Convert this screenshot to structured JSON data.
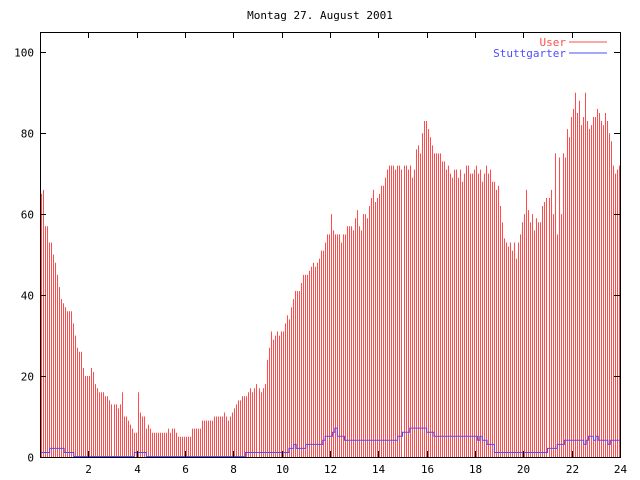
{
  "chart_data": {
    "type": "bar",
    "title": "Montag 27. August 2001",
    "xlabel": "",
    "ylabel": "",
    "xlim": [
      0,
      24
    ],
    "ylim": [
      0,
      105
    ],
    "x_ticks": [
      2,
      4,
      6,
      8,
      10,
      12,
      14,
      16,
      18,
      20,
      22,
      24
    ],
    "y_ticks": [
      0,
      20,
      40,
      60,
      80,
      100
    ],
    "legend_position": "top-right",
    "interval_minutes": 5,
    "series": [
      {
        "name": "User",
        "style": "impulses",
        "color": "#ff4d4d",
        "values": [
          65,
          66,
          57,
          57,
          53,
          53,
          50,
          48,
          45,
          42,
          39,
          38,
          37,
          36,
          36,
          36,
          33,
          30,
          27,
          26,
          26,
          22,
          20,
          20,
          20,
          22,
          21,
          18,
          17,
          16,
          16,
          16,
          15,
          15,
          14,
          13,
          13,
          13,
          12,
          13,
          16,
          10,
          10,
          9,
          8,
          7,
          6,
          6,
          16,
          11,
          10,
          10,
          7,
          8,
          7,
          6,
          6,
          6,
          6,
          6,
          6,
          6,
          6,
          7,
          6,
          7,
          7,
          6,
          5,
          5,
          5,
          5,
          5,
          5,
          5,
          7,
          7,
          7,
          7,
          7,
          9,
          9,
          9,
          9,
          9,
          9,
          10,
          10,
          10,
          10,
          10,
          11,
          10,
          9,
          10,
          11,
          12,
          13,
          14,
          14,
          15,
          15,
          15,
          16,
          17,
          16,
          17,
          18,
          17,
          16,
          17,
          18,
          24,
          27,
          31,
          29,
          30,
          31,
          30,
          31,
          31,
          33,
          35,
          34,
          37,
          39,
          41,
          41,
          41,
          43,
          45,
          45,
          45,
          46,
          47,
          48,
          47,
          48,
          49,
          51,
          51,
          53,
          55,
          55,
          60,
          56,
          55,
          55,
          55,
          53,
          55,
          55,
          57,
          57,
          57,
          56,
          59,
          61,
          57,
          56,
          60,
          60,
          59,
          62,
          64,
          66,
          63,
          64,
          65,
          67,
          67,
          69,
          71,
          72,
          72,
          72,
          71,
          72,
          72,
          71,
          72,
          72,
          71,
          72,
          69,
          71,
          76,
          77,
          75,
          80,
          83,
          83,
          81,
          79,
          77,
          75,
          75,
          75,
          75,
          73,
          73,
          71,
          72,
          70,
          69,
          71,
          71,
          69,
          71,
          68,
          70,
          72,
          72,
          70,
          70,
          71,
          72,
          70,
          71,
          68,
          70,
          72,
          70,
          71,
          68,
          68,
          66,
          67,
          62,
          58,
          54,
          53,
          52,
          53,
          51,
          53,
          49,
          53,
          55,
          58,
          60,
          66,
          61,
          58,
          60,
          56,
          59,
          58,
          58,
          62,
          63,
          64,
          64,
          66,
          60,
          75,
          55,
          74,
          60,
          75,
          74,
          81,
          79,
          84,
          86,
          90,
          85,
          88,
          82,
          84,
          90,
          83,
          81,
          82,
          84,
          84,
          86,
          85,
          83,
          82,
          85,
          83,
          80,
          78,
          72,
          70,
          71,
          72
        ]
      },
      {
        "name": "Stuttgarter",
        "style": "steps",
        "color": "#4d4dff",
        "points": [
          [
            0,
            1
          ],
          [
            0.4,
            2
          ],
          [
            1.0,
            1
          ],
          [
            1.4,
            0
          ],
          [
            3.9,
            1
          ],
          [
            4.4,
            0
          ],
          [
            8.5,
            1
          ],
          [
            10.3,
            2
          ],
          [
            10.5,
            3
          ],
          [
            10.6,
            2
          ],
          [
            11.0,
            3
          ],
          [
            11.7,
            4
          ],
          [
            11.8,
            5
          ],
          [
            12.1,
            6
          ],
          [
            12.2,
            7
          ],
          [
            12.3,
            5
          ],
          [
            12.6,
            4
          ],
          [
            14.8,
            5
          ],
          [
            15.0,
            6
          ],
          [
            15.3,
            7
          ],
          [
            16.0,
            6
          ],
          [
            16.3,
            5
          ],
          [
            18.1,
            4
          ],
          [
            18.2,
            5
          ],
          [
            18.3,
            4
          ],
          [
            18.5,
            3
          ],
          [
            18.8,
            1
          ],
          [
            21.0,
            2
          ],
          [
            21.4,
            3
          ],
          [
            21.7,
            4
          ],
          [
            22.5,
            3
          ],
          [
            22.6,
            4
          ],
          [
            22.7,
            5
          ],
          [
            22.9,
            4
          ],
          [
            23.0,
            5
          ],
          [
            23.1,
            4
          ],
          [
            23.5,
            3
          ],
          [
            23.6,
            4
          ],
          [
            24,
            4
          ]
        ]
      }
    ]
  }
}
